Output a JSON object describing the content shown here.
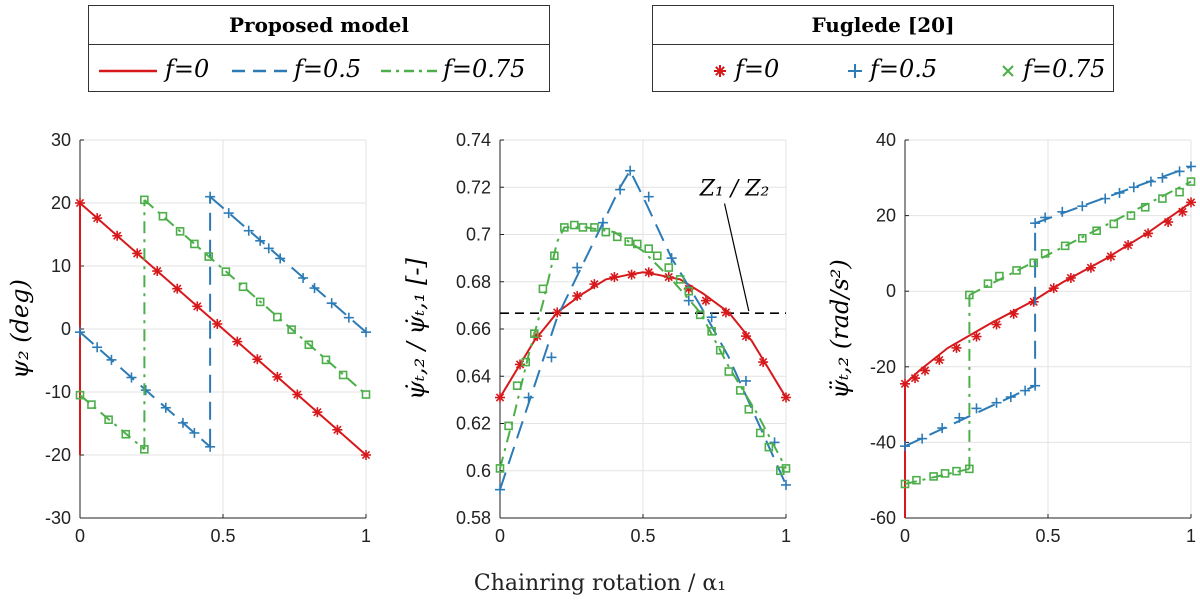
{
  "legend_model": {
    "title": "Proposed model",
    "entries": [
      {
        "label": "f=0",
        "color": "#d7191c",
        "style": "solid"
      },
      {
        "label": "f=0.5",
        "color": "#2c7bb6",
        "style": "dashed"
      },
      {
        "label": "f=0.75",
        "color": "#4daf4a",
        "style": "dashdot"
      }
    ]
  },
  "legend_ref": {
    "title": "Fuglede [20]",
    "entries": [
      {
        "label": "f=0",
        "color": "#d7191c",
        "marker": "*"
      },
      {
        "label": "f=0.5",
        "color": "#2c7bb6",
        "marker": "+"
      },
      {
        "label": "f=0.75",
        "color": "#4daf4a",
        "marker": "square"
      }
    ]
  },
  "xlabel": "Chainring rotation / α₁",
  "colors": {
    "f0": "#d7191c",
    "f05": "#2c7bb6",
    "f075": "#4daf4a",
    "ref": "#000000",
    "grid": "#e3e3e3"
  },
  "chart_data": [
    {
      "type": "line",
      "ylabel": "ψ₂ (deg)",
      "xlim": [
        0,
        1
      ],
      "ylim": [
        -30,
        30
      ],
      "xticks": [
        0,
        0.5,
        1
      ],
      "xtick_labels": [
        "0",
        "0.5",
        "1"
      ],
      "yticks": [
        -30,
        -20,
        -10,
        0,
        10,
        20,
        30
      ],
      "ytick_labels": [
        "-30",
        "-20",
        "-10",
        "0",
        "10",
        "20",
        "30"
      ],
      "series": [
        {
          "name": "f=0",
          "segments": [
            {
              "x": [
                0,
                0
              ],
              "y": [
                -20,
                20
              ]
            },
            {
              "x": [
                0,
                1
              ],
              "y": [
                20,
                -20
              ]
            }
          ],
          "markers": {
            "x": [
              0,
              0.06,
              0.13,
              0.2,
              0.27,
              0.34,
              0.41,
              0.48,
              0.55,
              0.62,
              0.69,
              0.76,
              0.83,
              0.9,
              1
            ],
            "y": [
              20,
              17.6,
              14.8,
              12,
              9.2,
              6.4,
              3.6,
              0.8,
              -2,
              -4.8,
              -7.6,
              -10.4,
              -13.2,
              -16,
              -20
            ]
          }
        },
        {
          "name": "f=0.5",
          "segments": [
            {
              "x": [
                0,
                0.455
              ],
              "y": [
                -0.5,
                -18.7
              ]
            },
            {
              "x": [
                0.455,
                0.455
              ],
              "y": [
                -18.7,
                21
              ]
            },
            {
              "x": [
                0.455,
                1
              ],
              "y": [
                21,
                -0.5
              ]
            }
          ],
          "markers": {
            "x": [
              0,
              0.06,
              0.11,
              0.18,
              0.23,
              0.3,
              0.36,
              0.4,
              0.455,
              0.455,
              0.52,
              0.59,
              0.63,
              0.66,
              0.7,
              0.78,
              0.82,
              0.88,
              0.94,
              1
            ],
            "y": [
              -0.5,
              -2.9,
              -4.9,
              -7.7,
              -9.7,
              -12.5,
              -14.9,
              -16.5,
              -18.7,
              21,
              18.4,
              15.6,
              14,
              12.8,
              11.2,
              8.1,
              6.5,
              4.1,
              1.8,
              -0.5
            ]
          }
        },
        {
          "name": "f=0.75",
          "segments": [
            {
              "x": [
                0,
                0.225
              ],
              "y": [
                -10.5,
                -19.1
              ]
            },
            {
              "x": [
                0.225,
                0.225
              ],
              "y": [
                -19.1,
                20.5
              ]
            },
            {
              "x": [
                0.225,
                1
              ],
              "y": [
                20.5,
                -10.4
              ]
            }
          ],
          "markers": {
            "x": [
              0,
              0.04,
              0.1,
              0.16,
              0.225,
              0.225,
              0.29,
              0.35,
              0.4,
              0.45,
              0.51,
              0.57,
              0.63,
              0.69,
              0.74,
              0.8,
              0.86,
              0.92,
              1
            ],
            "y": [
              -10.5,
              -12,
              -14.4,
              -16.7,
              -19.1,
              20.5,
              17.9,
              15.5,
              13.5,
              11.5,
              9.1,
              6.7,
              4.3,
              1.9,
              -0.1,
              -2.5,
              -4.9,
              -7.3,
              -10.4
            ]
          }
        }
      ]
    },
    {
      "type": "line",
      "ylabel": "ψ̇ₜ,₂ / ψ̇ₜ,₁ [-]",
      "xlim": [
        0,
        1
      ],
      "ylim": [
        0.58,
        0.74
      ],
      "xticks": [
        0,
        0.5,
        1
      ],
      "xtick_labels": [
        "0",
        "0.5",
        "1"
      ],
      "yticks": [
        0.58,
        0.6,
        0.62,
        0.64,
        0.66,
        0.68,
        0.7,
        0.72,
        0.74
      ],
      "ytick_labels": [
        "0.58",
        "0.6",
        "0.62",
        "0.64",
        "0.66",
        "0.68",
        "0.7",
        "0.72",
        "0.74"
      ],
      "annotation": {
        "text": "Z₁ / Z₂",
        "x": 0.82,
        "y": 0.7165,
        "arrow_to": [
          0.87,
          0.6667
        ]
      },
      "reference_line": {
        "name": "Z1/Z2",
        "y": 0.6667
      },
      "series": [
        {
          "name": "f=0",
          "segments": [
            {
              "x": [
                0,
                0.03,
                0.07,
                0.12,
                0.2,
                0.29,
                0.37,
                0.45,
                0.5,
                0.55,
                0.63,
                0.71,
                0.8,
                0.88,
                0.93,
                0.97,
                1
              ],
              "y": [
                0.631,
                0.637,
                0.645,
                0.655,
                0.667,
                0.675,
                0.681,
                0.683,
                0.684,
                0.683,
                0.681,
                0.675,
                0.667,
                0.655,
                0.645,
                0.637,
                0.631
              ]
            }
          ],
          "markers": {
            "x": [
              0,
              0.07,
              0.13,
              0.2,
              0.27,
              0.33,
              0.4,
              0.46,
              0.52,
              0.59,
              0.66,
              0.72,
              0.79,
              0.86,
              0.92,
              1
            ],
            "y": [
              0.631,
              0.645,
              0.657,
              0.667,
              0.674,
              0.679,
              0.682,
              0.683,
              0.684,
              0.682,
              0.677,
              0.672,
              0.667,
              0.657,
              0.646,
              0.631
            ]
          }
        },
        {
          "name": "f=0.5",
          "segments": [
            {
              "x": [
                0,
                0.2,
                0.3,
                0.36,
                0.42,
                0.455,
                0.5,
                0.6,
                0.7,
                0.8,
                1
              ],
              "y": [
                0.592,
                0.665,
                0.69,
                0.705,
                0.72,
                0.727,
                0.716,
                0.69,
                0.67,
                0.648,
                0.594
              ]
            }
          ],
          "markers": {
            "x": [
              0,
              0.1,
              0.18,
              0.27,
              0.36,
              0.42,
              0.455,
              0.52,
              0.6,
              0.66,
              0.74,
              0.86,
              0.96,
              1
            ],
            "y": [
              0.592,
              0.631,
              0.648,
              0.686,
              0.705,
              0.719,
              0.727,
              0.716,
              0.69,
              0.672,
              0.665,
              0.638,
              0.612,
              0.594
            ]
          }
        },
        {
          "name": "f=0.75",
          "segments": [
            {
              "x": [
                0,
                0.05,
                0.1,
                0.15,
                0.2,
                0.225,
                0.3,
                0.4,
                0.5,
                0.6,
                0.7,
                0.8,
                0.9,
                1
              ],
              "y": [
                0.601,
                0.624,
                0.649,
                0.671,
                0.697,
                0.703,
                0.703,
                0.701,
                0.693,
                0.681,
                0.667,
                0.644,
                0.624,
                0.601
              ]
            }
          ],
          "markers": {
            "x": [
              0,
              0.03,
              0.06,
              0.09,
              0.12,
              0.15,
              0.19,
              0.225,
              0.26,
              0.29,
              0.33,
              0.37,
              0.41,
              0.45,
              0.48,
              0.52,
              0.55,
              0.59,
              0.63,
              0.66,
              0.7,
              0.74,
              0.77,
              0.8,
              0.84,
              0.87,
              0.91,
              0.94,
              0.98,
              1
            ],
            "y": [
              0.601,
              0.619,
              0.636,
              0.646,
              0.658,
              0.677,
              0.691,
              0.703,
              0.704,
              0.703,
              0.703,
              0.701,
              0.699,
              0.697,
              0.696,
              0.694,
              0.691,
              0.686,
              0.681,
              0.676,
              0.666,
              0.659,
              0.651,
              0.642,
              0.634,
              0.626,
              0.616,
              0.61,
              0.6,
              0.601
            ]
          }
        }
      ]
    },
    {
      "type": "line",
      "ylabel": "ψ̈ₜ,₂ (rad/s²)",
      "xlim": [
        0,
        1
      ],
      "ylim": [
        -60,
        40
      ],
      "xticks": [
        0,
        0.5,
        1
      ],
      "xtick_labels": [
        "0",
        "0.5",
        "1"
      ],
      "yticks": [
        -60,
        -40,
        -20,
        0,
        20,
        40
      ],
      "ytick_labels": [
        "-60",
        "-40",
        "-20",
        "0",
        "20",
        "40"
      ],
      "series": [
        {
          "name": "f=0",
          "segments": [
            {
              "x": [
                0,
                0
              ],
              "y": [
                -60,
                -24.5
              ]
            },
            {
              "x": [
                0,
                0.05,
                0.15,
                0.3,
                0.45,
                0.55,
                0.7,
                0.85,
                1
              ],
              "y": [
                -24.5,
                -21,
                -15,
                -8.5,
                -2.5,
                2.3,
                8.5,
                15.5,
                23.5
              ]
            }
          ],
          "markers": {
            "x": [
              0,
              0.035,
              0.07,
              0.12,
              0.18,
              0.25,
              0.32,
              0.38,
              0.45,
              0.52,
              0.58,
              0.65,
              0.72,
              0.78,
              0.85,
              0.92,
              0.97,
              1
            ],
            "y": [
              -24.5,
              -23,
              -21,
              -18.2,
              -15,
              -12,
              -8.8,
              -6,
              -2.8,
              0.8,
              3.5,
              6.2,
              9.2,
              12.2,
              15.3,
              18.3,
              21,
              23.5
            ]
          }
        },
        {
          "name": "f=0.5",
          "segments": [
            {
              "x": [
                0,
                0.455
              ],
              "y": [
                -41,
                -25
              ]
            },
            {
              "x": [
                0.455,
                0.455
              ],
              "y": [
                -25,
                18
              ]
            },
            {
              "x": [
                0.455,
                1
              ],
              "y": [
                18,
                33
              ]
            }
          ],
          "markers": {
            "x": [
              0,
              0.06,
              0.13,
              0.19,
              0.25,
              0.32,
              0.37,
              0.42,
              0.455,
              0.455,
              0.49,
              0.55,
              0.62,
              0.7,
              0.75,
              0.8,
              0.86,
              0.9,
              0.96,
              1
            ],
            "y": [
              -41,
              -39,
              -36.2,
              -33.5,
              -31,
              -29.5,
              -28,
              -26.3,
              -25,
              18,
              19.5,
              21,
              22.5,
              24.5,
              26,
              27.5,
              29,
              30,
              31.7,
              33
            ]
          }
        },
        {
          "name": "f=0.75",
          "segments": [
            {
              "x": [
                0,
                0.225
              ],
              "y": [
                -51,
                -47
              ]
            },
            {
              "x": [
                0.225,
                0.225
              ],
              "y": [
                -47,
                -1
              ]
            },
            {
              "x": [
                0.225,
                1
              ],
              "y": [
                -1,
                29
              ]
            }
          ],
          "markers": {
            "x": [
              0,
              0.04,
              0.1,
              0.14,
              0.18,
              0.225,
              0.225,
              0.29,
              0.33,
              0.39,
              0.45,
              0.49,
              0.56,
              0.62,
              0.67,
              0.73,
              0.79,
              0.84,
              0.9,
              0.96,
              1
            ],
            "y": [
              -51,
              -50,
              -49,
              -48.2,
              -47.6,
              -47,
              -1,
              2,
              4,
              5.5,
              7.5,
              10,
              12,
              14,
              16,
              17.8,
              20,
              22.2,
              24.5,
              26.2,
              29
            ]
          }
        }
      ]
    }
  ]
}
